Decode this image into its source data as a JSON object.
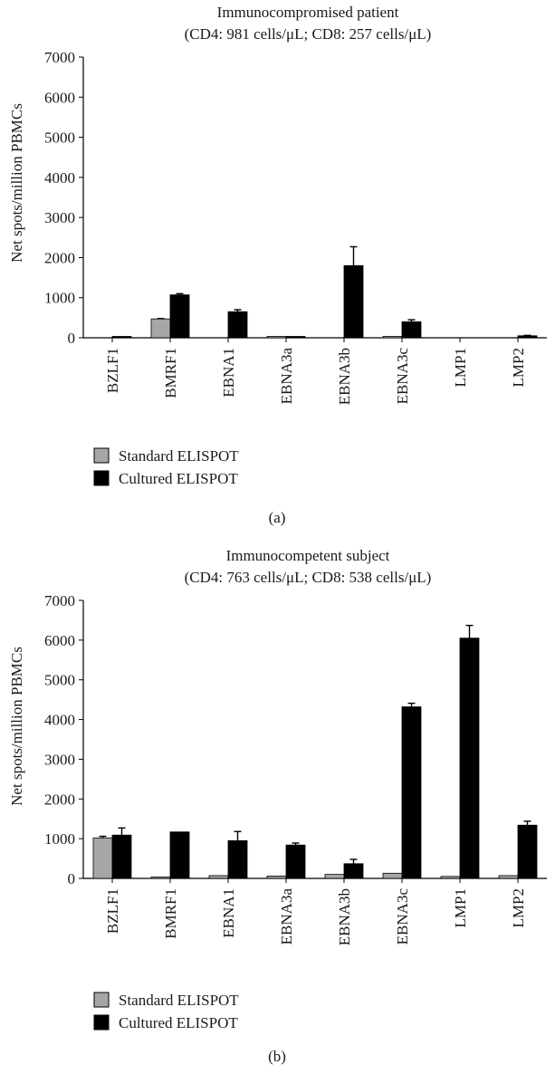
{
  "chart_data": [
    {
      "type": "bar",
      "panel_label": "(a)",
      "title": "Immunocompromised patient",
      "subtitle": "(CD4: 981 cells/μL; CD8: 257 cells/μL)",
      "ylabel": "Net spots/million PBMCs",
      "ylim": [
        0,
        7000
      ],
      "yticks": [
        0,
        1000,
        2000,
        3000,
        4000,
        5000,
        6000,
        7000
      ],
      "categories": [
        "BZLF1",
        "BMRF1",
        "EBNA1",
        "EBNA3a",
        "EBNA3b",
        "EBNA3c",
        "LMP1",
        "LMP2"
      ],
      "series": [
        {
          "name": "Standard ELISPOT",
          "color": "#a6a6a6",
          "values": [
            0,
            470,
            0,
            10,
            0,
            20,
            0,
            0
          ],
          "errors": [
            0,
            10,
            0,
            0,
            0,
            0,
            0,
            0
          ]
        },
        {
          "name": "Cultured ELISPOT",
          "color": "#000000",
          "values": [
            30,
            1070,
            650,
            30,
            1800,
            400,
            0,
            50
          ],
          "errors": [
            0,
            30,
            50,
            0,
            470,
            50,
            0,
            10
          ]
        }
      ]
    },
    {
      "type": "bar",
      "panel_label": "(b)",
      "title": "Immunocompetent subject",
      "subtitle": "(CD4: 763 cells/μL; CD8: 538 cells/μL)",
      "ylabel": "Net spots/million PBMCs",
      "ylim": [
        0,
        7000
      ],
      "yticks": [
        0,
        1000,
        2000,
        3000,
        4000,
        5000,
        6000,
        7000
      ],
      "categories": [
        "BZLF1",
        "BMRF1",
        "EBNA1",
        "EBNA3a",
        "EBNA3b",
        "EBNA3c",
        "LMP1",
        "LMP2"
      ],
      "series": [
        {
          "name": "Standard ELISPOT",
          "color": "#a6a6a6",
          "values": [
            1020,
            10,
            70,
            60,
            100,
            130,
            50,
            70
          ],
          "errors": [
            40,
            0,
            0,
            0,
            0,
            0,
            0,
            0
          ]
        },
        {
          "name": "Cultured ELISPOT",
          "color": "#000000",
          "values": [
            1090,
            1170,
            950,
            840,
            370,
            4320,
            6050,
            1340
          ],
          "errors": [
            180,
            0,
            230,
            50,
            110,
            90,
            320,
            100
          ]
        }
      ]
    }
  ]
}
